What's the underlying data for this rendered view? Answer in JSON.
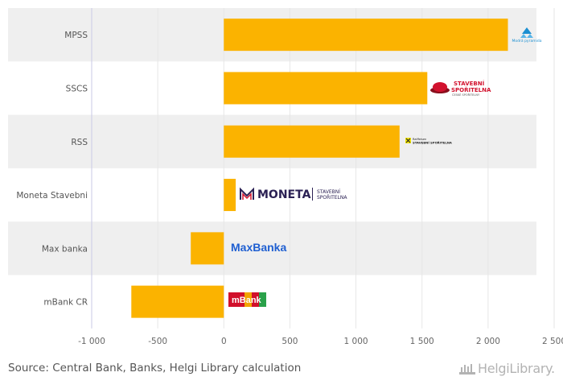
{
  "chart_data": {
    "type": "bar",
    "orientation": "horizontal",
    "categories": [
      "MPSS",
      "SSCS",
      "RSS",
      "Moneta Stavebni",
      "Max banka",
      "mBank CR"
    ],
    "values": [
      2150,
      1540,
      1330,
      90,
      -250,
      -700
    ],
    "xlim": [
      -1000,
      2500
    ],
    "xticks": [
      -1000,
      -500,
      0,
      500,
      1000,
      1500,
      2000,
      2500
    ],
    "xtick_labels": [
      "-1 000",
      "-500",
      "0",
      "500",
      "1 000",
      "1 500",
      "2 000",
      "2 500"
    ],
    "bar_color": "#fbb300",
    "band_color": "#efefef",
    "grid": true,
    "logos": [
      {
        "category": "MPSS",
        "text": "Modrá pyramida",
        "color": "#1c8fd1"
      },
      {
        "category": "SSCS",
        "text_lines": [
          "STAVEBNÍ",
          "SPOŘITELNA",
          "ČESKÉ SPOŘITELNY"
        ],
        "color": "#d2122e"
      },
      {
        "category": "RSS",
        "text_lines": [
          "Raiffeisen",
          "STAVEBNÍ SPOŘITELNA"
        ],
        "color": "#222222"
      },
      {
        "category": "Moneta Stavebni",
        "text": "MONETA",
        "text_lines": [
          "STAVEBNÍ",
          "SPOŘITELNA"
        ],
        "color": "#2b2154"
      },
      {
        "category": "Max banka",
        "text": "MaxBanka",
        "color": "#1f5fd1"
      },
      {
        "category": "mBank CR",
        "text": "mBank",
        "color": "#d1102b"
      }
    ]
  },
  "footer": {
    "source": "Source: Central Bank, Banks, Helgi Library calculation",
    "brand": "HelgiLibrary."
  }
}
